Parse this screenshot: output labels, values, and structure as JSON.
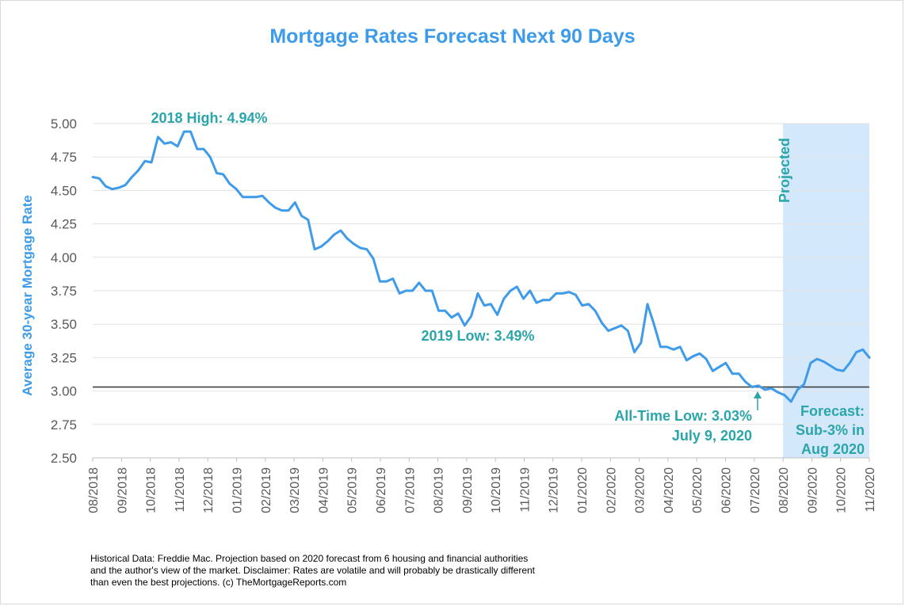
{
  "colors": {
    "title": "#3d9be9",
    "line": "#3d9be9",
    "annotation": "#2aa5a9",
    "axis_text": "#595959",
    "projected_band": "#d4e8fc",
    "reference_line": "#404040",
    "grid": "#e2e2e2"
  },
  "chart_data": {
    "type": "line",
    "title": "Mortgage Rates Forecast Next 90 Days",
    "ylabel": "Average 30-year Mortgage Rate",
    "xlabel": "",
    "ylim": [
      2.5,
      5.0
    ],
    "yticks": [
      "5.00",
      "4.75",
      "4.50",
      "4.25",
      "4.00",
      "3.75",
      "3.50",
      "3.25",
      "3.00",
      "2.75",
      "2.50"
    ],
    "xticks": [
      "08/2018",
      "09/2018",
      "10/2018",
      "11/2018",
      "12/2018",
      "01/2019",
      "02/2019",
      "03/2019",
      "04/2019",
      "05/2019",
      "06/2019",
      "07/2019",
      "08/2019",
      "09/2019",
      "10/2019",
      "11/2019",
      "12/2019",
      "01/2020",
      "02/2020",
      "03/2020",
      "04/2020",
      "05/2020",
      "06/2020",
      "07/2020",
      "08/2020",
      "09/2020",
      "10/2020",
      "11/2020"
    ],
    "grid": true,
    "reference_line_y": 3.03,
    "projected_region": {
      "label": "Projected",
      "from": "08/2020",
      "to": "11/2020"
    },
    "series": [
      {
        "values": [
          4.6,
          4.59,
          4.53,
          4.51,
          4.52,
          4.54,
          4.6,
          4.65,
          4.72,
          4.71,
          4.9,
          4.85,
          4.86,
          4.83,
          4.94,
          4.94,
          4.81,
          4.81,
          4.75,
          4.63,
          4.62,
          4.55,
          4.51,
          4.45,
          4.45,
          4.45,
          4.46,
          4.41,
          4.37,
          4.35,
          4.35,
          4.41,
          4.31,
          4.28,
          4.06,
          4.08,
          4.12,
          4.17,
          4.2,
          4.14,
          4.1,
          4.07,
          4.06,
          3.99,
          3.82,
          3.82,
          3.84,
          3.73,
          3.75,
          3.75,
          3.81,
          3.75,
          3.75,
          3.6,
          3.6,
          3.55,
          3.58,
          3.49,
          3.56,
          3.73,
          3.64,
          3.65,
          3.57,
          3.69,
          3.75,
          3.78,
          3.69,
          3.75,
          3.66,
          3.68,
          3.68,
          3.73,
          3.73,
          3.74,
          3.72,
          3.64,
          3.65,
          3.6,
          3.51,
          3.45,
          3.47,
          3.49,
          3.45,
          3.29,
          3.36,
          3.65,
          3.5,
          3.33,
          3.33,
          3.31,
          3.33,
          3.23,
          3.26,
          3.28,
          3.24,
          3.15,
          3.18,
          3.21,
          3.13,
          3.13,
          3.07,
          3.03,
          3.04,
          3.01,
          3.02,
          2.99,
          2.97,
          2.92,
          3.01,
          3.05,
          3.21,
          3.24,
          3.22,
          3.19,
          3.16,
          3.15,
          3.21,
          3.29,
          3.31,
          3.25
        ]
      }
    ],
    "annotations": {
      "high": "2018 High: 4.94%",
      "low_2019": "2019 Low: 3.49%",
      "all_time_low_line1": "All-Time Low: 3.03%",
      "all_time_low_line2": "July 9, 2020",
      "forecast_line1": "Forecast:",
      "forecast_line2": "Sub-3% in",
      "forecast_line3": "Aug 2020"
    }
  },
  "footnote": {
    "line1": "Historical Data: Freddie Mac.  Projection based on 2020 forecast from 6 housing and financial authorities",
    "line2": "and the author's view of the market. Disclaimer: Rates are volatile and will probably be drastically different",
    "line3": "than even the best projections. (c) TheMortgageReports.com"
  }
}
